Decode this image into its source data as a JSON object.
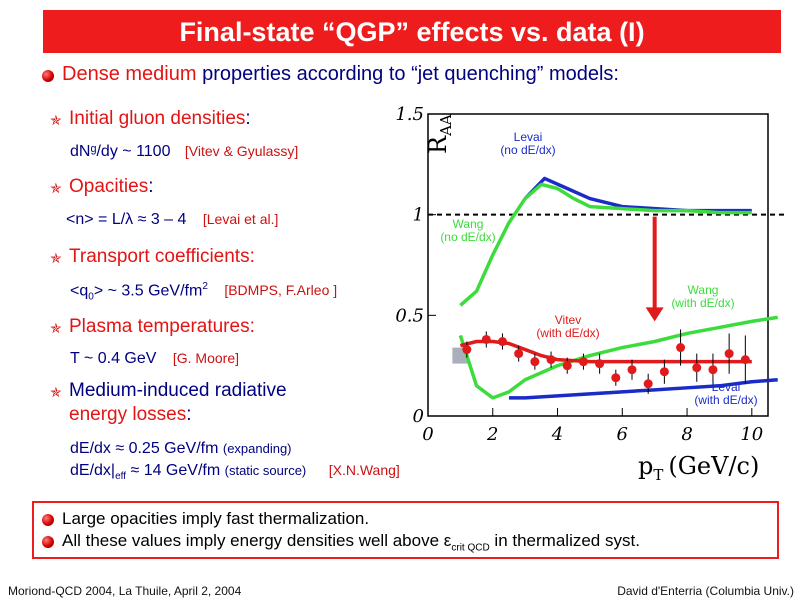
{
  "title": "Final-state “QGP” effects vs. data (I)",
  "intro": {
    "highlight": "Dense medium",
    "rest": "properties according to “jet quenching” models:"
  },
  "items": [
    {
      "label_red": "Initial gluon densities",
      "label_suffix": ":",
      "value": "dNᵍ/dy ~ 1100",
      "ref": "[Vitev & Gyulassy]"
    },
    {
      "label_red": "Opacities",
      "label_suffix": ":",
      "value": "<n> = L/λ  ≈ 3 – 4",
      "ref": "[Levai et al.]"
    },
    {
      "label_red": "Transport coefficients:",
      "label_suffix": "",
      "value_a": "<q",
      "value_sub": "0",
      "value_b": "> ~ 3.5 GeV/fm",
      "value_sup": "2",
      "ref": "[BDMPS, F.Arleo ]"
    },
    {
      "label_red": "Plasma temperatures:",
      "label_suffix": "",
      "value": "T ~ 0.4 GeV",
      "ref": "[G. Moore]"
    },
    {
      "label_line1": "Medium-induced radiative",
      "label_red": "energy losses",
      "label_suffix": ":",
      "value1": "dE/dx ≈ 0.25 GeV/fm",
      "value1_note": "(expanding)",
      "value2_a": "dE/dx|",
      "value2_sub": "eff",
      "value2_b": " ≈ 14 GeV/fm",
      "value2_note": "(static source)",
      "ref": "[X.N.Wang]"
    }
  ],
  "summary": [
    "Large opacities imply fast thermalization.",
    {
      "text_a": "All these values imply energy densities well above ",
      "epsilon": "ε",
      "sub": "crit QCD",
      "text_b": " in thermalized syst."
    }
  ],
  "footer": {
    "left": "Moriond-QCD 2004, La Thuile, April 2, 2004",
    "right": "David d'Enterria (Columbia Univ.)"
  },
  "chart_data": {
    "type": "line",
    "xlabel": "pT (GeV/c)",
    "xlabel_main": "p",
    "xlabel_sub": "T",
    "xlabel_unit": "(GeV/c)",
    "ylabel": "R",
    "ylabel_sub": "AA",
    "xlim": [
      0,
      10.5
    ],
    "ylim": [
      0,
      1.5
    ],
    "xticks": [
      "0",
      "2",
      "4",
      "6",
      "8",
      "10"
    ],
    "yticks": [
      "0",
      "0.5",
      "1",
      "1.5"
    ],
    "reference_line": 1,
    "series": [
      {
        "name": "Levai (no dE/dx)",
        "label_line1": "Levai",
        "label_line2": "(no dE/dx)",
        "color": "#1a2bc8",
        "x": [
          3.0,
          3.6,
          4.3,
          5.0,
          6.0,
          7.0,
          8.0,
          9.0,
          10.0
        ],
        "y": [
          1.08,
          1.18,
          1.13,
          1.08,
          1.04,
          1.03,
          1.02,
          1.02,
          1.02
        ]
      },
      {
        "name": "Wang (no dE/dx)",
        "label_line1": "Wang",
        "label_line2": "(no dE/dx)",
        "color": "#3ddc3d",
        "x": [
          1.0,
          1.5,
          2.0,
          2.5,
          3.0,
          3.5,
          4.0,
          4.5,
          5.0,
          6.0,
          7.0,
          8.0,
          9.0,
          10.0
        ],
        "y": [
          0.55,
          0.62,
          0.8,
          0.96,
          1.08,
          1.15,
          1.13,
          1.08,
          1.04,
          1.03,
          1.02,
          1.02,
          1.01,
          1.01
        ]
      },
      {
        "name": "Wang (with dE/dx)",
        "label_line1": "Wang",
        "label_line2": "(with dE/dx)",
        "color": "#3ddc3d",
        "x": [
          1.0,
          1.5,
          2.0,
          2.5,
          3.0,
          4.0,
          5.0,
          6.0,
          7.0,
          8.0,
          9.0,
          10.0,
          10.8
        ],
        "y": [
          0.4,
          0.15,
          0.09,
          0.12,
          0.18,
          0.25,
          0.3,
          0.34,
          0.37,
          0.41,
          0.44,
          0.47,
          0.49
        ]
      },
      {
        "name": "Vitev (with dE/dx)",
        "label_line1": "Vitev",
        "label_line2": "(with dE/dx)",
        "color": "#e11b1b",
        "x": [
          1.0,
          1.5,
          2.0,
          2.5,
          3.0,
          3.5,
          4.0,
          5.0,
          6.0,
          7.0,
          8.0,
          9.0,
          10.0
        ],
        "y": [
          0.35,
          0.37,
          0.37,
          0.36,
          0.33,
          0.3,
          0.28,
          0.27,
          0.27,
          0.27,
          0.27,
          0.27,
          0.27
        ]
      },
      {
        "name": "Levai (with dE/dx)",
        "label_line1": "Levai",
        "label_line2": "(with dE/dx)",
        "color": "#1a2bc8",
        "x": [
          2.5,
          3.0,
          4.0,
          5.0,
          6.0,
          7.0,
          8.0,
          9.0,
          10.0,
          10.8
        ],
        "y": [
          0.09,
          0.09,
          0.1,
          0.11,
          0.12,
          0.13,
          0.14,
          0.15,
          0.17,
          0.18
        ]
      },
      {
        "name": "data",
        "color": "#e11b1b",
        "marker": "point",
        "x": [
          1.2,
          1.8,
          2.3,
          2.8,
          3.3,
          3.8,
          4.3,
          4.8,
          5.3,
          5.8,
          6.3,
          6.8,
          7.3,
          7.8,
          8.3,
          8.8,
          9.3,
          9.8
        ],
        "y": [
          0.33,
          0.38,
          0.37,
          0.31,
          0.27,
          0.28,
          0.25,
          0.27,
          0.26,
          0.19,
          0.23,
          0.16,
          0.22,
          0.34,
          0.24,
          0.23,
          0.31,
          0.28
        ],
        "err": [
          0.04,
          0.04,
          0.04,
          0.04,
          0.04,
          0.04,
          0.04,
          0.04,
          0.05,
          0.04,
          0.05,
          0.05,
          0.06,
          0.09,
          0.07,
          0.08,
          0.1,
          0.12
        ]
      }
    ],
    "arrow": {
      "x": 7.0,
      "y_from": 0.99,
      "y_to": 0.47,
      "color": "#e11b1b"
    },
    "box": {
      "x": 1.0,
      "y": 0.3,
      "color": "#aab0bb"
    }
  }
}
